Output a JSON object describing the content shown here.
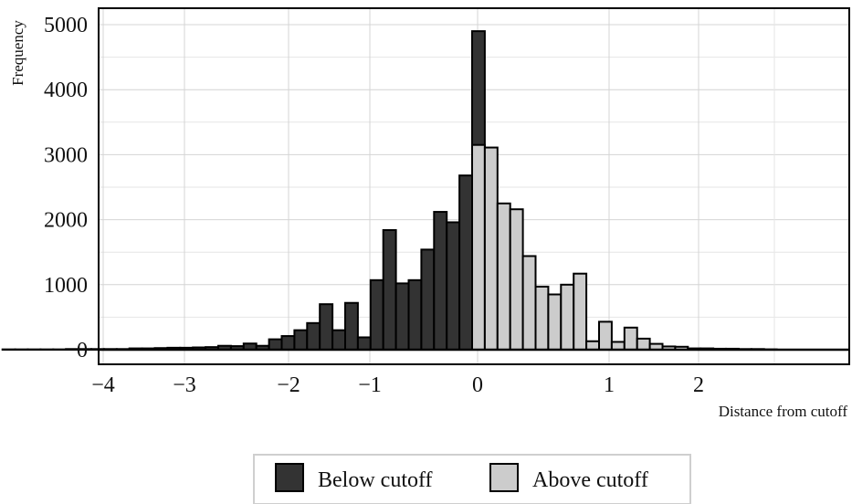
{
  "chart_data": {
    "type": "bar",
    "subtype": "histogram",
    "xlabel": "Distance from cutoff",
    "ylabel": "Frequency",
    "ylim": [
      0,
      5000
    ],
    "grid": true,
    "legend_position": "bottom",
    "colors": {
      "below": "#333333",
      "above": "#cccccc",
      "edge": "#000000",
      "grid": "#d4d4d4"
    },
    "ticks": {
      "x": [
        {
          "value": -4,
          "label": "−4"
        },
        {
          "value": -3,
          "label": "−3"
        },
        {
          "value": -2,
          "label": "−2"
        },
        {
          "value": -1,
          "label": "−1"
        },
        {
          "value": 0,
          "label": "0"
        },
        {
          "value": 1,
          "label": "1"
        },
        {
          "value": 2,
          "label": "2"
        }
      ],
      "y": [
        {
          "value": 0,
          "label": "0"
        },
        {
          "value": 1000,
          "label": "1000"
        },
        {
          "value": 2000,
          "label": "2000"
        },
        {
          "value": 3000,
          "label": "3000"
        },
        {
          "value": 4000,
          "label": "4000"
        },
        {
          "value": 5000,
          "label": "5000"
        }
      ]
    },
    "series": [
      {
        "name": "Below cutoff",
        "color": "#333333",
        "bins": [
          {
            "x0": -4.3,
            "x1": -4.2,
            "value": 5
          },
          {
            "x0": -4.2,
            "x1": -4.1,
            "value": 5
          },
          {
            "x0": -4.1,
            "x1": -4.0,
            "value": 5
          },
          {
            "x0": -4.0,
            "x1": -3.9,
            "value": 5
          },
          {
            "x0": -3.9,
            "x1": -3.8,
            "value": 5
          },
          {
            "x0": -3.8,
            "x1": -3.7,
            "value": 10
          },
          {
            "x0": -3.7,
            "x1": -3.6,
            "value": 10
          },
          {
            "x0": -3.6,
            "x1": -3.5,
            "value": 10
          },
          {
            "x0": -3.5,
            "x1": -3.4,
            "value": 10
          },
          {
            "x0": -3.4,
            "x1": -3.3,
            "value": 10
          },
          {
            "x0": -3.3,
            "x1": -3.2,
            "value": 20
          },
          {
            "x0": -3.2,
            "x1": -3.1,
            "value": 20
          },
          {
            "x0": -3.1,
            "x1": -3.0,
            "value": 25
          },
          {
            "x0": -3.0,
            "x1": -2.9,
            "value": 30
          },
          {
            "x0": -2.9,
            "x1": -2.8,
            "value": 30
          },
          {
            "x0": -2.8,
            "x1": -2.7,
            "value": 35
          },
          {
            "x0": -2.7,
            "x1": -2.6,
            "value": 40
          },
          {
            "x0": -2.6,
            "x1": -2.5,
            "value": 60
          },
          {
            "x0": -2.5,
            "x1": -2.4,
            "value": 55
          },
          {
            "x0": -2.4,
            "x1": -2.25,
            "value": 95
          },
          {
            "x0": -2.25,
            "x1": -2.1,
            "value": 60
          },
          {
            "x0": -2.1,
            "x1": -1.95,
            "value": 160
          },
          {
            "x0": -1.95,
            "x1": -1.8,
            "value": 210
          },
          {
            "x0": -1.8,
            "x1": -1.65,
            "value": 300
          },
          {
            "x0": -1.65,
            "x1": -1.5,
            "value": 410
          },
          {
            "x0": -1.5,
            "x1": -1.35,
            "value": 700
          },
          {
            "x0": -1.35,
            "x1": -1.2,
            "value": 300
          },
          {
            "x0": -1.2,
            "x1": -1.05,
            "value": 720
          },
          {
            "x0": -1.05,
            "x1": -0.9,
            "value": 190
          },
          {
            "x0": -0.9,
            "x1": -0.75,
            "value": 1070
          },
          {
            "x0": -0.75,
            "x1": -0.6,
            "value": 1840
          },
          {
            "x0": -0.6,
            "x1": -0.45,
            "value": 1020
          },
          {
            "x0": -0.45,
            "x1": -0.3,
            "value": 1070
          },
          {
            "x0": -0.3,
            "x1": -0.15,
            "value": 1540
          },
          {
            "x0": -0.15,
            "x1": 0.0,
            "value": 2120
          },
          {
            "x0": 0.0,
            "x1": 0.15,
            "value": 1960
          },
          {
            "x0": 0.15,
            "x1": 0.3,
            "value": 2680
          },
          {
            "x0": 0.3,
            "x1": 0.45,
            "value": 4900
          }
        ]
      },
      {
        "name": "Above cutoff",
        "color": "#cccccc",
        "bins": [
          {
            "x0": 0.3,
            "x1": 0.45,
            "value": 3150
          },
          {
            "x0": 0.45,
            "x1": 0.6,
            "value": 3110
          },
          {
            "x0": 0.6,
            "x1": 0.75,
            "value": 2250
          },
          {
            "x0": 0.75,
            "x1": 0.9,
            "value": 2160
          },
          {
            "x0": 0.9,
            "x1": 1.05,
            "value": 1440
          },
          {
            "x0": 1.05,
            "x1": 1.2,
            "value": 970
          },
          {
            "x0": 1.2,
            "x1": 1.35,
            "value": 850
          },
          {
            "x0": 1.35,
            "x1": 1.5,
            "value": 1000
          },
          {
            "x0": 1.5,
            "x1": 1.65,
            "value": 1170
          },
          {
            "x0": 1.65,
            "x1": 1.8,
            "value": 130
          },
          {
            "x0": 1.8,
            "x1": 1.95,
            "value": 430
          },
          {
            "x0": 1.95,
            "x1": 2.1,
            "value": 120
          },
          {
            "x0": 2.1,
            "x1": 2.25,
            "value": 340
          },
          {
            "x0": 2.25,
            "x1": 2.4,
            "value": 170
          },
          {
            "x0": 2.4,
            "x1": 2.55,
            "value": 90
          },
          {
            "x0": 2.55,
            "x1": 2.7,
            "value": 50
          },
          {
            "x0": 2.7,
            "x1": 2.85,
            "value": 45
          },
          {
            "x0": 2.85,
            "x1": 3.0,
            "value": 20
          },
          {
            "x0": 3.0,
            "x1": 3.15,
            "value": 20
          },
          {
            "x0": 3.15,
            "x1": 3.3,
            "value": 15
          },
          {
            "x0": 3.3,
            "x1": 3.45,
            "value": 15
          },
          {
            "x0": 3.45,
            "x1": 3.6,
            "value": 10
          },
          {
            "x0": 3.6,
            "x1": 3.75,
            "value": 10
          },
          {
            "x0": 3.75,
            "x1": 3.9,
            "value": 5
          }
        ]
      }
    ]
  }
}
